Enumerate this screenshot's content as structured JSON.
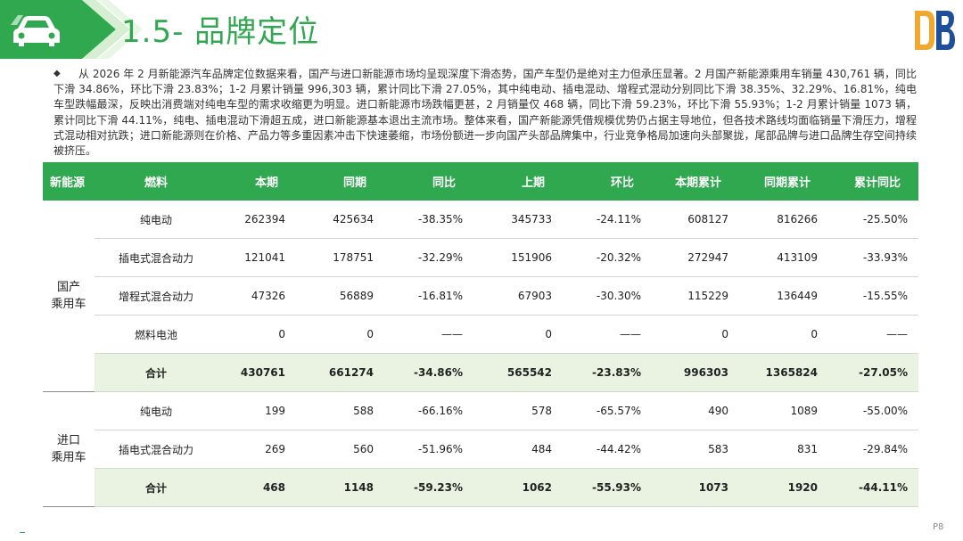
{
  "header": {
    "title": "1.5- 品牌定位",
    "car_icon": "car-icon",
    "logo_icon": "brand-logo-icon"
  },
  "paragraph": {
    "bullet": "◆",
    "text": "从 2026 年 2 月新能源汽车品牌定位数据来看，国产与进口新能源市场均呈现深度下滑态势，国产车型仍是绝对主力但承压显著。2 月国产新能源乘用车销量 430,761 辆，同比下滑 34.86%，环比下滑 23.83%；1-2 月累计销量 996,303 辆，累计同比下滑 27.05%，其中纯电动、插电混动、增程式混动分别同比下滑 38.35%、32.29%、16.81%，纯电车型跌幅最深，反映出消费端对纯电车型的需求收缩更为明显。进口新能源市场跌幅更甚，2 月销量仅 468 辆，同比下滑 59.23%，环比下滑 55.93%；1-2 月累计销量 1073 辆，累计同比下滑 44.11%，纯电、插电混动下滑超五成，进口新能源基本退出主流市场。整体来看，国产新能源凭借规模优势仍占据主导地位，但各技术路线均面临销量下滑压力，增程式混动相对抗跌；进口新能源则在价格、产品力等多重因素冲击下快速萎缩，市场份额进一步向国产头部品牌集中，行业竞争格局加速向头部聚拢，尾部品牌与进口品牌生存空间持续被挤压。"
  },
  "table": {
    "headers": [
      "新能源",
      "燃料",
      "本期",
      "同期",
      "同比",
      "上期",
      "环比",
      "本期累计",
      "同期累计",
      "累计同比"
    ],
    "groups": [
      {
        "label_line1": "国产",
        "label_line2": "乘用车",
        "rows": [
          [
            "纯电动",
            "262394",
            "425634",
            "-38.35%",
            "345733",
            "-24.11%",
            "608127",
            "816266",
            "-25.50%"
          ],
          [
            "插电式混合动力",
            "121041",
            "178751",
            "-32.29%",
            "151906",
            "-20.32%",
            "272947",
            "413109",
            "-33.93%"
          ],
          [
            "增程式混合动力",
            "47326",
            "56889",
            "-16.81%",
            "67903",
            "-30.30%",
            "115229",
            "136449",
            "-15.55%"
          ],
          [
            "燃料电池",
            "0",
            "0",
            "——",
            "0",
            "——",
            "0",
            "0",
            "——"
          ]
        ],
        "total": [
          "合计",
          "430761",
          "661274",
          "-34.86%",
          "565542",
          "-23.83%",
          "996303",
          "1365824",
          "-27.05%"
        ]
      },
      {
        "label_line1": "进口",
        "label_line2": "乘用车",
        "rows": [
          [
            "纯电动",
            "199",
            "588",
            "-66.16%",
            "578",
            "-65.57%",
            "490",
            "1089",
            "-55.00%"
          ],
          [
            "插电式混合动力",
            "269",
            "560",
            "-51.96%",
            "484",
            "-44.42%",
            "583",
            "831",
            "-29.84%"
          ]
        ],
        "total": [
          "合计",
          "468",
          "1148",
          "-59.23%",
          "1062",
          "-55.93%",
          "1073",
          "1920",
          "-44.11%"
        ]
      }
    ]
  },
  "footer": {
    "page": "P8"
  },
  "colors": {
    "accent": "#2fa84f",
    "total_row_bg": "#eaf3e1",
    "header_band_light": "#d6efd2"
  }
}
